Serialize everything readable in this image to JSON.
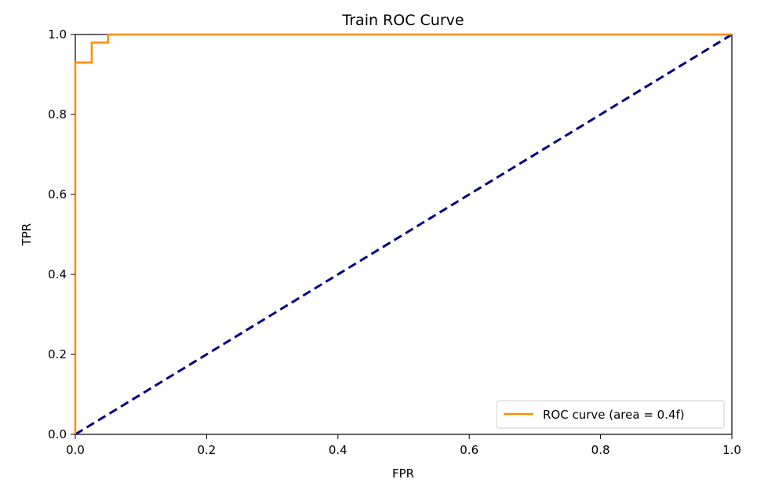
{
  "chart_data": {
    "type": "line",
    "title": "Train ROC Curve",
    "xlabel": "FPR",
    "ylabel": "TPR",
    "xlim": [
      0.0,
      1.0
    ],
    "ylim": [
      0.0,
      1.0
    ],
    "xticks": [
      0.0,
      0.2,
      0.4,
      0.6,
      0.8,
      1.0
    ],
    "yticks": [
      0.0,
      0.2,
      0.4,
      0.6,
      0.8,
      1.0
    ],
    "xtick_labels": [
      "0.0",
      "0.2",
      "0.4",
      "0.6",
      "0.8",
      "1.0"
    ],
    "ytick_labels": [
      "0.0",
      "0.2",
      "0.4",
      "0.6",
      "0.8",
      "1.0"
    ],
    "grid": false,
    "legend_position": "lower-right",
    "series": [
      {
        "name": "ROC curve (area = 0.4f)",
        "color": "#ff8c00",
        "style": "step",
        "x": [
          0.0,
          0.0,
          0.025,
          0.025,
          0.05,
          0.05,
          1.0
        ],
        "y": [
          0.0,
          0.93,
          0.93,
          0.98,
          0.98,
          1.0,
          1.0
        ]
      },
      {
        "color": "#000080",
        "style": "dashed",
        "x": [
          0.0,
          1.0
        ],
        "y": [
          0.0,
          1.0
        ]
      }
    ]
  }
}
